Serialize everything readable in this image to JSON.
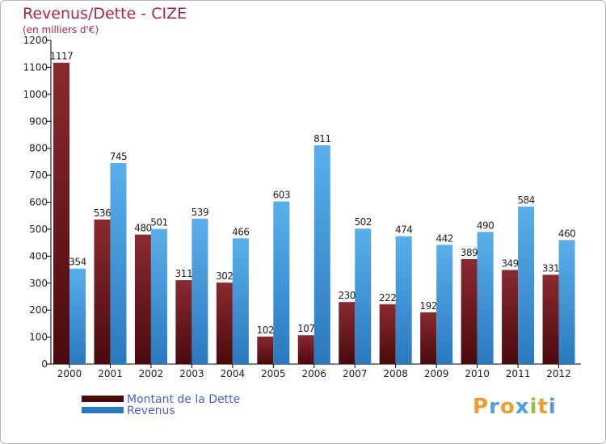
{
  "title": "Revenus/Dette - CIZE",
  "subtitle": "(en milliers d'€)",
  "logo_letters": [
    "P",
    "r",
    "o",
    "x",
    "i",
    "t",
    "i"
  ],
  "colors": {
    "dette_top": "#8a2a30",
    "dette_bottom": "#4a0a0c",
    "revenus_top": "#5aafea",
    "revenus_bottom": "#2a79bf",
    "title": "#b0204f",
    "legend_text": "#4a5ed6",
    "logo": [
      "#f29a2e",
      "#4ea0de",
      "#f29a2e",
      "#4ea0de",
      "#8cc63e",
      "#f29a2e",
      "#4ea0de"
    ]
  },
  "chart_data": {
    "type": "bar",
    "title": "Revenus/Dette - CIZE",
    "subtitle": "(en milliers d'€)",
    "categories": [
      "2000",
      "2001",
      "2002",
      "2003",
      "2004",
      "2005",
      "2006",
      "2007",
      "2008",
      "2009",
      "2010",
      "2011",
      "2012"
    ],
    "series": [
      {
        "name": "Montant de la Dette",
        "values": [
          1117,
          536,
          480,
          311,
          302,
          102,
          107,
          230,
          222,
          192,
          389,
          349,
          331
        ]
      },
      {
        "name": "Revenus",
        "values": [
          354,
          745,
          501,
          539,
          466,
          603,
          811,
          502,
          474,
          442,
          490,
          584,
          460
        ]
      }
    ],
    "yticks": [
      0,
      100,
      200,
      300,
      400,
      500,
      600,
      700,
      800,
      900,
      1000,
      1100,
      1200
    ],
    "ylim": [
      0,
      1200
    ],
    "grid": false,
    "legend_position": "bottom-left"
  }
}
